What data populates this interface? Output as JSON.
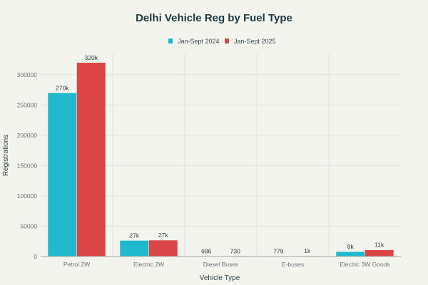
{
  "chart_data": {
    "type": "bar",
    "title": "Delhi Vehicle Reg by Fuel Type",
    "xlabel": "Vehicle Type",
    "ylabel": "Registrations",
    "categories": [
      "Petrol 2W",
      "Electric 2W",
      "Diesel Buses",
      "E-buses",
      "Electric 3W Goods"
    ],
    "series": [
      {
        "name": "Jan-Sept 2024",
        "color": "#1fb8cd",
        "values": [
          270000,
          26500,
          686,
          779,
          8000
        ],
        "labels": [
          "270k",
          "27k",
          "686",
          "779",
          "8k"
        ]
      },
      {
        "name": "Jan-Sept 2025",
        "color": "#db4545",
        "values": [
          320000,
          27000,
          730,
          1000,
          11000
        ],
        "labels": [
          "320k",
          "27k",
          "730",
          "1k",
          "11k"
        ]
      }
    ],
    "yticks": [
      0,
      50000,
      100000,
      150000,
      200000,
      250000,
      300000
    ],
    "ytick_labels": [
      "0",
      "50000",
      "100000",
      "150000",
      "200000",
      "250000",
      "300000"
    ],
    "ylim": [
      0,
      335000
    ],
    "grid": true,
    "legend_position": "top-center"
  }
}
